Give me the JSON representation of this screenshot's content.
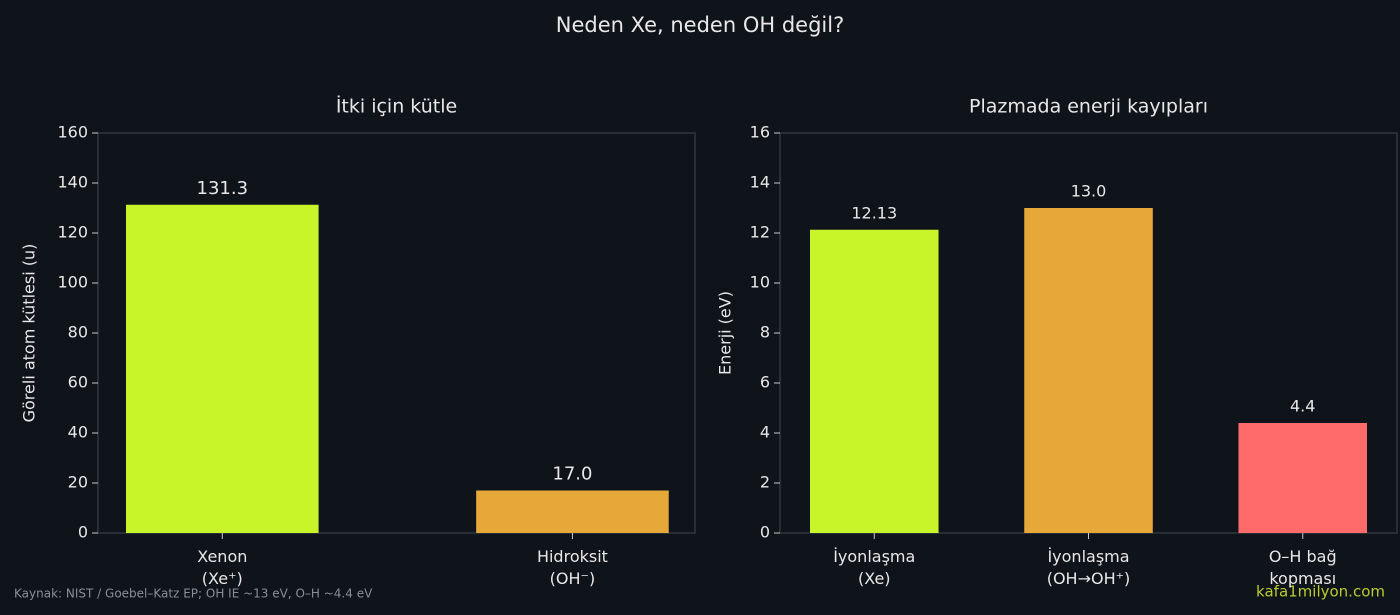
{
  "title": "Neden Xe, neden OH değil?",
  "source": "Kaynak: NIST / Goebel–Katz EP; OH IE ~13 eV, O–H ~4.4 eV",
  "watermark": "kafa1milyon.com",
  "chart_data": [
    {
      "type": "bar",
      "title": "İtki için kütle",
      "y_label": "Göreli atom kütlesi (u)",
      "categories": [
        "Xenon\n(Xe⁺)",
        "Hidroksit\n(OH⁻)"
      ],
      "values": [
        131.3,
        17
      ],
      "value_labels": [
        "131.3",
        "17.0"
      ],
      "colors": [
        "#c8f52a",
        "#e6a838"
      ],
      "ylim": [
        0,
        160
      ],
      "yticks": [
        0,
        20,
        40,
        60,
        80,
        100,
        120,
        140,
        160
      ]
    },
    {
      "type": "bar",
      "title": "Plazmada enerji kayıpları",
      "y_label": "Enerji (eV)",
      "categories": [
        "İyonlaşma\n(Xe)",
        "İyonlaşma\n(OH→OH⁺)",
        "O–H bağ\nkopması"
      ],
      "values": [
        12.13,
        13,
        4.4
      ],
      "value_labels": [
        "12.13",
        "13.0",
        "4.4"
      ],
      "colors": [
        "#c8f52a",
        "#e6a838",
        "#ff6b6b"
      ],
      "ylim": [
        0,
        16
      ],
      "yticks": [
        0,
        2,
        4,
        6,
        8,
        10,
        12,
        14,
        16
      ]
    }
  ]
}
